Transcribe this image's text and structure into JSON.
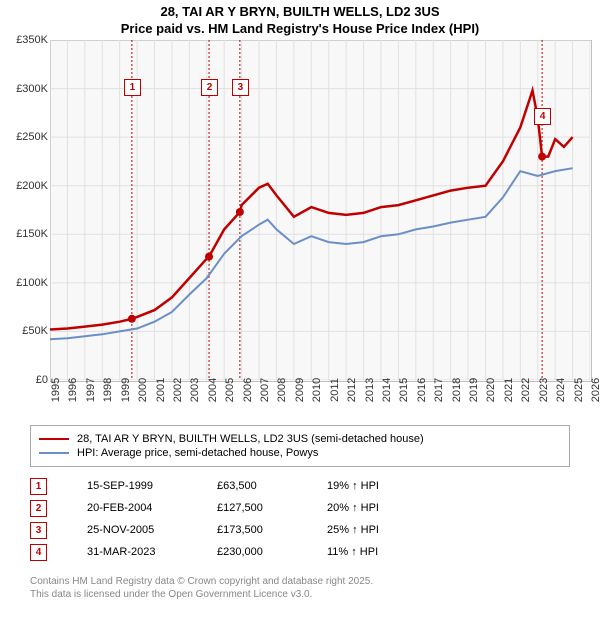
{
  "title_line1": "28, TAI AR Y BRYN, BUILTH WELLS, LD2 3US",
  "title_line2": "Price paid vs. HM Land Registry's House Price Index (HPI)",
  "chart": {
    "type": "line",
    "plot_bg": "#f8f8f8",
    "grid_color": "#e0e0e0",
    "border_color": "#c0c0c0",
    "x_years": [
      1995,
      1996,
      1997,
      1998,
      1999,
      2000,
      2001,
      2002,
      2003,
      2004,
      2005,
      2006,
      2007,
      2008,
      2009,
      2010,
      2011,
      2012,
      2013,
      2014,
      2015,
      2016,
      2017,
      2018,
      2019,
      2020,
      2021,
      2022,
      2023,
      2024,
      2025,
      2026
    ],
    "x_min": 1995,
    "x_max": 2026,
    "y_min": 0,
    "y_max": 350,
    "y_ticks": [
      0,
      50,
      100,
      150,
      200,
      250,
      300,
      350
    ],
    "y_tick_labels": [
      "£0",
      "£50K",
      "£100K",
      "£150K",
      "£200K",
      "£250K",
      "£300K",
      "£350K"
    ],
    "series": [
      {
        "name": "28, TAI AR Y BRYN, BUILTH WELLS, LD2 3US (semi-detached house)",
        "color": "#c00000",
        "width": 2.5,
        "points": [
          [
            1995,
            52
          ],
          [
            1996,
            53
          ],
          [
            1997,
            55
          ],
          [
            1998,
            57
          ],
          [
            1999,
            60
          ],
          [
            1999.7,
            63
          ],
          [
            2000,
            65
          ],
          [
            2001,
            72
          ],
          [
            2002,
            85
          ],
          [
            2003,
            105
          ],
          [
            2004,
            125
          ],
          [
            2004.13,
            127
          ],
          [
            2005,
            155
          ],
          [
            2005.9,
            173
          ],
          [
            2006,
            180
          ],
          [
            2007,
            198
          ],
          [
            2007.5,
            202
          ],
          [
            2008,
            190
          ],
          [
            2009,
            168
          ],
          [
            2010,
            178
          ],
          [
            2011,
            172
          ],
          [
            2012,
            170
          ],
          [
            2013,
            172
          ],
          [
            2014,
            178
          ],
          [
            2015,
            180
          ],
          [
            2016,
            185
          ],
          [
            2017,
            190
          ],
          [
            2018,
            195
          ],
          [
            2019,
            198
          ],
          [
            2020,
            200
          ],
          [
            2021,
            225
          ],
          [
            2022,
            260
          ],
          [
            2022.7,
            298
          ],
          [
            2023,
            270
          ],
          [
            2023.25,
            230
          ],
          [
            2023.6,
            230
          ],
          [
            2024,
            248
          ],
          [
            2024.5,
            240
          ],
          [
            2025,
            250
          ]
        ]
      },
      {
        "name": "HPI: Average price, semi-detached house, Powys",
        "color": "#6a8fc7",
        "width": 2,
        "points": [
          [
            1995,
            42
          ],
          [
            1996,
            43
          ],
          [
            1997,
            45
          ],
          [
            1998,
            47
          ],
          [
            1999,
            50
          ],
          [
            2000,
            53
          ],
          [
            2001,
            60
          ],
          [
            2002,
            70
          ],
          [
            2003,
            88
          ],
          [
            2004,
            105
          ],
          [
            2005,
            130
          ],
          [
            2006,
            148
          ],
          [
            2007,
            160
          ],
          [
            2007.5,
            165
          ],
          [
            2008,
            155
          ],
          [
            2009,
            140
          ],
          [
            2010,
            148
          ],
          [
            2011,
            142
          ],
          [
            2012,
            140
          ],
          [
            2013,
            142
          ],
          [
            2014,
            148
          ],
          [
            2015,
            150
          ],
          [
            2016,
            155
          ],
          [
            2017,
            158
          ],
          [
            2018,
            162
          ],
          [
            2019,
            165
          ],
          [
            2020,
            168
          ],
          [
            2021,
            188
          ],
          [
            2022,
            215
          ],
          [
            2023,
            210
          ],
          [
            2024,
            215
          ],
          [
            2025,
            218
          ]
        ]
      }
    ],
    "markers": [
      {
        "n": "1",
        "year": 1999.7,
        "label_y": 310
      },
      {
        "n": "2",
        "year": 2004.13,
        "label_y": 310
      },
      {
        "n": "3",
        "year": 2005.9,
        "label_y": 310
      },
      {
        "n": "4",
        "year": 2023.25,
        "label_y": 280
      }
    ],
    "marker_line_color": "#c00000"
  },
  "legend": {
    "items": [
      {
        "color": "#c00000",
        "label": "28, TAI AR Y BRYN, BUILTH WELLS, LD2 3US (semi-detached house)"
      },
      {
        "color": "#6a8fc7",
        "label": "HPI: Average price, semi-detached house, Powys"
      }
    ]
  },
  "sales": [
    {
      "n": "1",
      "date": "15-SEP-1999",
      "price": "£63,500",
      "diff": "19% ↑ HPI"
    },
    {
      "n": "2",
      "date": "20-FEB-2004",
      "price": "£127,500",
      "diff": "20% ↑ HPI"
    },
    {
      "n": "3",
      "date": "25-NOV-2005",
      "price": "£173,500",
      "diff": "25% ↑ HPI"
    },
    {
      "n": "4",
      "date": "31-MAR-2023",
      "price": "£230,000",
      "diff": "11% ↑ HPI"
    }
  ],
  "footer_line1": "Contains HM Land Registry data © Crown copyright and database right 2025.",
  "footer_line2": "This data is licensed under the Open Government Licence v3.0."
}
